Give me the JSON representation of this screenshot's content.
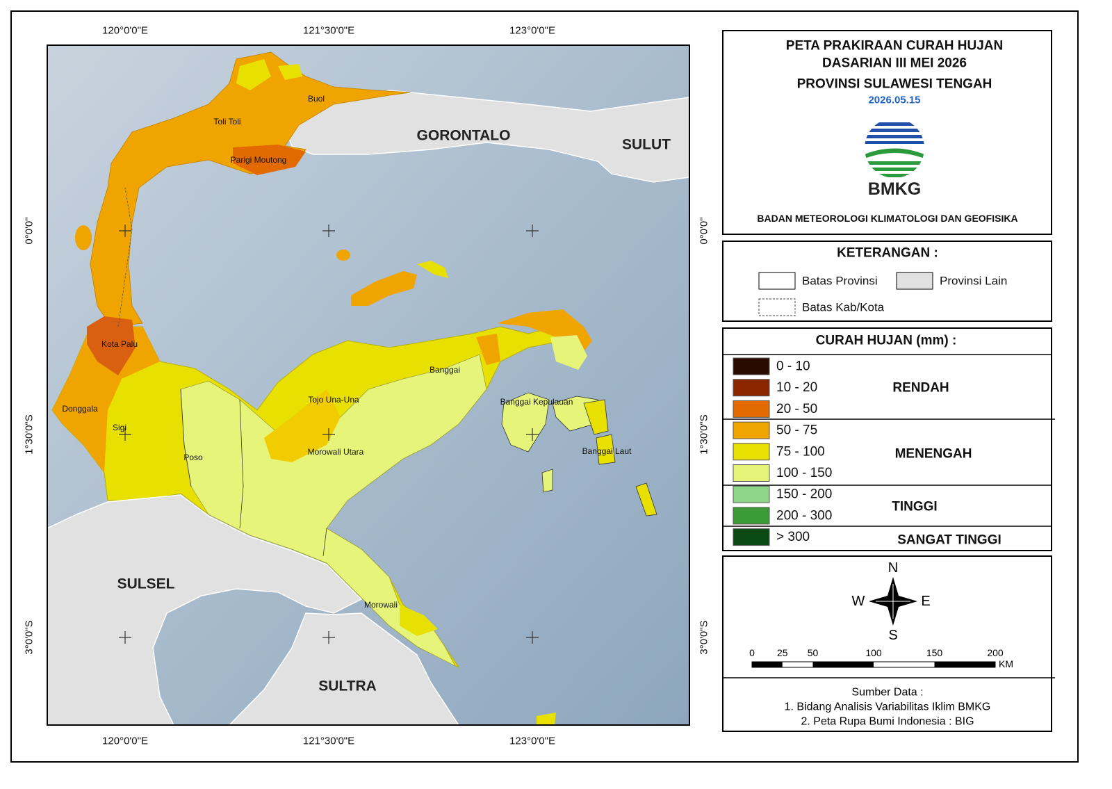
{
  "title": {
    "lines": [
      "PETA PRAKIRAAN CURAH HUJAN",
      "DASARIAN III MEI 2026",
      "PROVINSI SULAWESI TENGAH"
    ],
    "date": "2026.05.15",
    "logo_text": "BMKG",
    "agency": "BADAN METEOROLOGI KLIMATOLOGI DAN GEOFISIKA"
  },
  "coordinates": {
    "longitudes": [
      "120°0'0\"E",
      "121°30'0\"E",
      "123°0'0\"E"
    ],
    "latitudes": [
      "0°0'0\"",
      "1°30'0\"S",
      "3°0'0\"S"
    ]
  },
  "map_labels": {
    "provinces": [
      "GORONTALO",
      "SULUT",
      "SULSEL",
      "SULTRA"
    ],
    "regencies": [
      "Buol",
      "Toli Toli",
      "Parigi Moutong",
      "Kota Palu",
      "Donggala",
      "Sigi",
      "Poso",
      "Tojo Una-Una",
      "Morowali Utara",
      "Banggai",
      "Banggai Kepulauan",
      "Banggai Laut",
      "Morowali"
    ]
  },
  "keterangan": {
    "title": "KETERANGAN :",
    "items": [
      "Batas Provinsi",
      "Provinsi Lain",
      "Batas Kab/Kota"
    ]
  },
  "rainfall_legend": {
    "title": "CURAH HUJAN (mm) :",
    "classes": [
      {
        "label": "0 - 10",
        "color": "#2b0a00"
      },
      {
        "label": "10 - 20",
        "color": "#8b2500"
      },
      {
        "label": "20 - 50",
        "color": "#e26a00"
      },
      {
        "label": "50 - 75",
        "color": "#f0a400"
      },
      {
        "label": "75 - 100",
        "color": "#e8e000"
      },
      {
        "label": "100 - 150",
        "color": "#e6f57a"
      },
      {
        "label": "150 - 200",
        "color": "#8fd68a"
      },
      {
        "label": "200 - 300",
        "color": "#3a9a35"
      },
      {
        "label": "> 300",
        "color": "#0b4a12"
      }
    ],
    "groups": [
      "RENDAH",
      "MENENGAH",
      "TINGGI",
      "SANGAT TINGGI"
    ]
  },
  "compass": {
    "n": "N",
    "s": "S",
    "w": "W",
    "e": "E"
  },
  "scale": {
    "ticks": [
      0,
      25,
      50,
      100,
      150,
      200
    ],
    "unit": "KM"
  },
  "source": {
    "title": "Sumber Data :",
    "items": [
      "1. Bidang Analisis Variabilitas Iklim BMKG",
      "2. Peta Rupa Bumi Indonesia : BIG"
    ]
  }
}
